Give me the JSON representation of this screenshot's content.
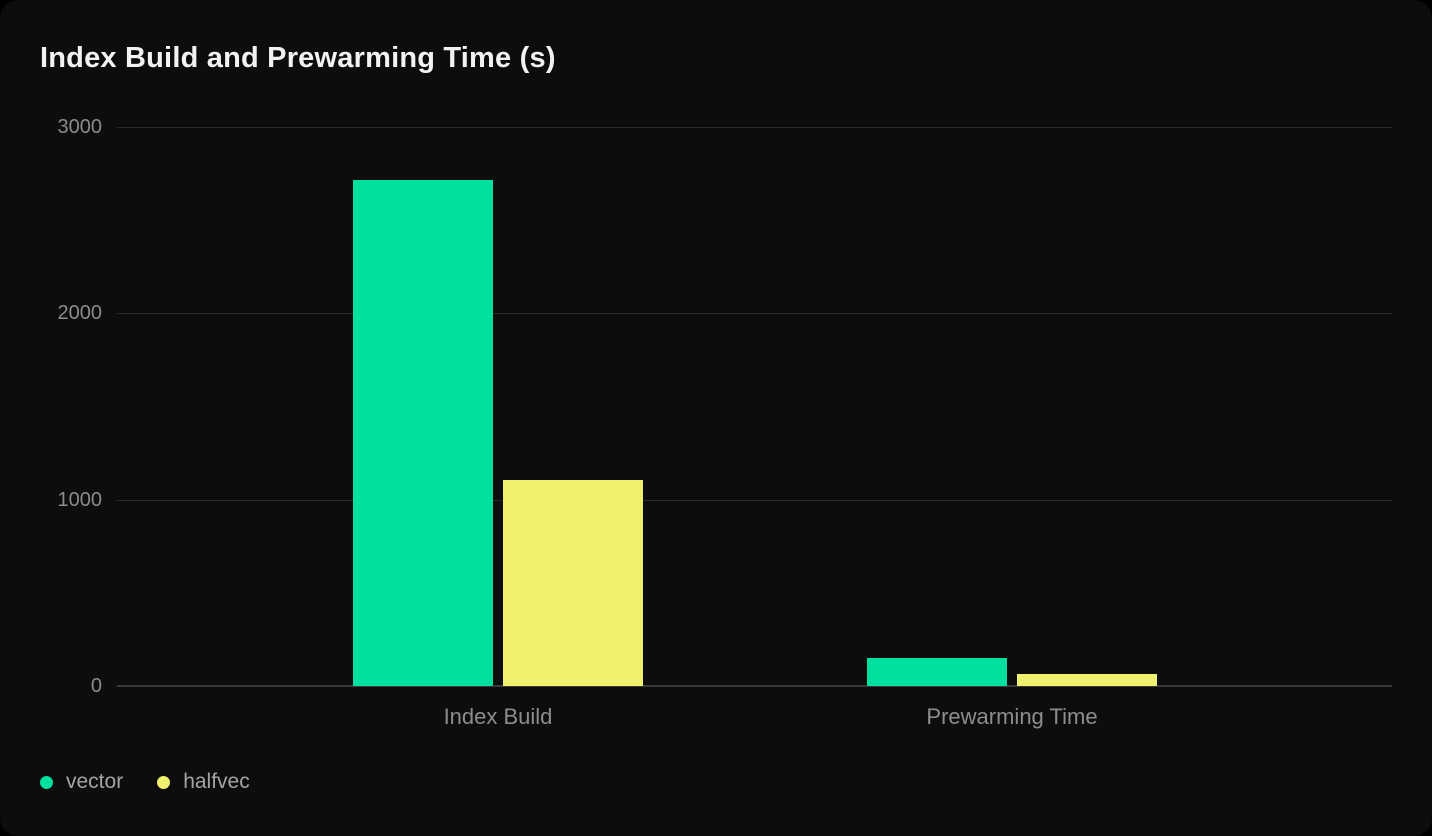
{
  "page": {
    "background": "#000000",
    "card_background": "#0D0D0D"
  },
  "chart_data": {
    "type": "bar",
    "title": "Index Build and Prewarming Time (s)",
    "categories": [
      "Index Build",
      "Prewarming Time"
    ],
    "series": [
      {
        "name": "vector",
        "color": "#00E09E",
        "values": [
          2716,
          148
        ]
      },
      {
        "name": "halfvec",
        "color": "#EEF06E",
        "values": [
          1108,
          66
        ]
      }
    ],
    "xlabel": "",
    "ylabel": "",
    "ylim": [
      0,
      3000
    ],
    "yticks": [
      0,
      1000,
      2000,
      3000
    ],
    "grid": "horizontal",
    "legend_position": "bottom-left",
    "colors": {
      "grid_line": "#2B2B2B",
      "zero_line": "#3A3A3A",
      "title_text": "#F2F2F2",
      "tick_text": "#8B8B8B",
      "category_text": "#8D8D8D",
      "legend_text": "#A4A4A4"
    }
  }
}
